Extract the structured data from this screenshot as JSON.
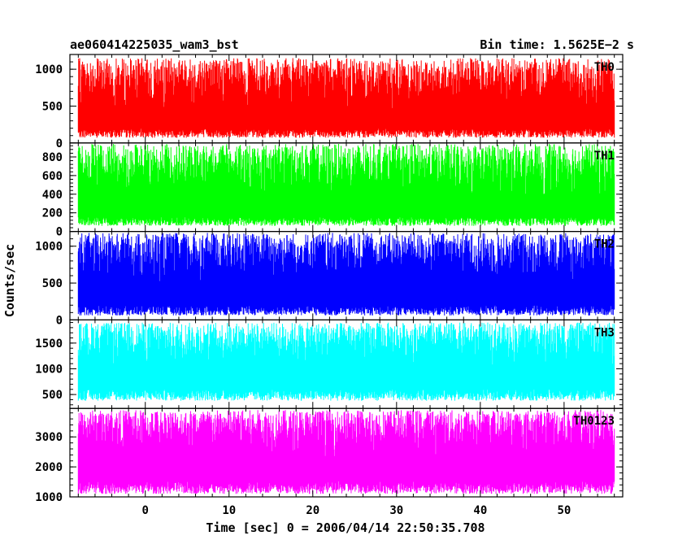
{
  "header": {
    "title": "ae060414225035_wam3_bst",
    "bin_time": "Bin time: 1.5625E−2 s"
  },
  "chart_data": {
    "type": "line",
    "title": "ae060414225035_wam3_bst",
    "xlabel": "Time [sec] 0 = 2006/04/14 22:50:35.708",
    "ylabel": "Counts/sec",
    "xlim": [
      -9,
      57
    ],
    "data_x_range": [
      -8,
      56
    ],
    "x_ticks": [
      0,
      10,
      20,
      30,
      40,
      50
    ],
    "x_tick_labels": [
      "0",
      "10",
      "20",
      "30",
      "40",
      "50"
    ],
    "grid": false,
    "panels": [
      {
        "name": "TH0",
        "color": "#ff0000",
        "ylim": [
          0,
          1200
        ],
        "y_ticks": [
          0,
          500,
          1000
        ],
        "y_tick_labels": [
          "0",
          "500",
          "1000"
        ],
        "baseline": 70,
        "mean": 420,
        "peak": 1150
      },
      {
        "name": "TH1",
        "color": "#00ff00",
        "ylim": [
          0,
          950
        ],
        "y_ticks": [
          0,
          200,
          400,
          600,
          800
        ],
        "y_tick_labels": [
          "0",
          "200",
          "400",
          "600",
          "800"
        ],
        "baseline": 60,
        "mean": 330,
        "peak": 940
      },
      {
        "name": "TH2",
        "color": "#0000ff",
        "ylim": [
          0,
          1200
        ],
        "y_ticks": [
          0,
          500,
          1000
        ],
        "y_tick_labels": [
          "0",
          "500",
          "1000"
        ],
        "baseline": 60,
        "mean": 450,
        "peak": 1180
      },
      {
        "name": "TH3",
        "color": "#00ffff",
        "ylim": [
          230,
          1950
        ],
        "y_ticks": [
          500,
          1000,
          1500
        ],
        "y_tick_labels": [
          "500",
          "1000",
          "1500"
        ],
        "baseline": 380,
        "mean": 1000,
        "peak": 1900
      },
      {
        "name": "TH0123",
        "color": "#ff00ff",
        "ylim": [
          1000,
          3950
        ],
        "y_ticks": [
          1000,
          2000,
          3000
        ],
        "y_tick_labels": [
          "1000",
          "2000",
          "3000"
        ],
        "baseline": 1100,
        "mean": 2300,
        "peak": 3900
      }
    ]
  }
}
